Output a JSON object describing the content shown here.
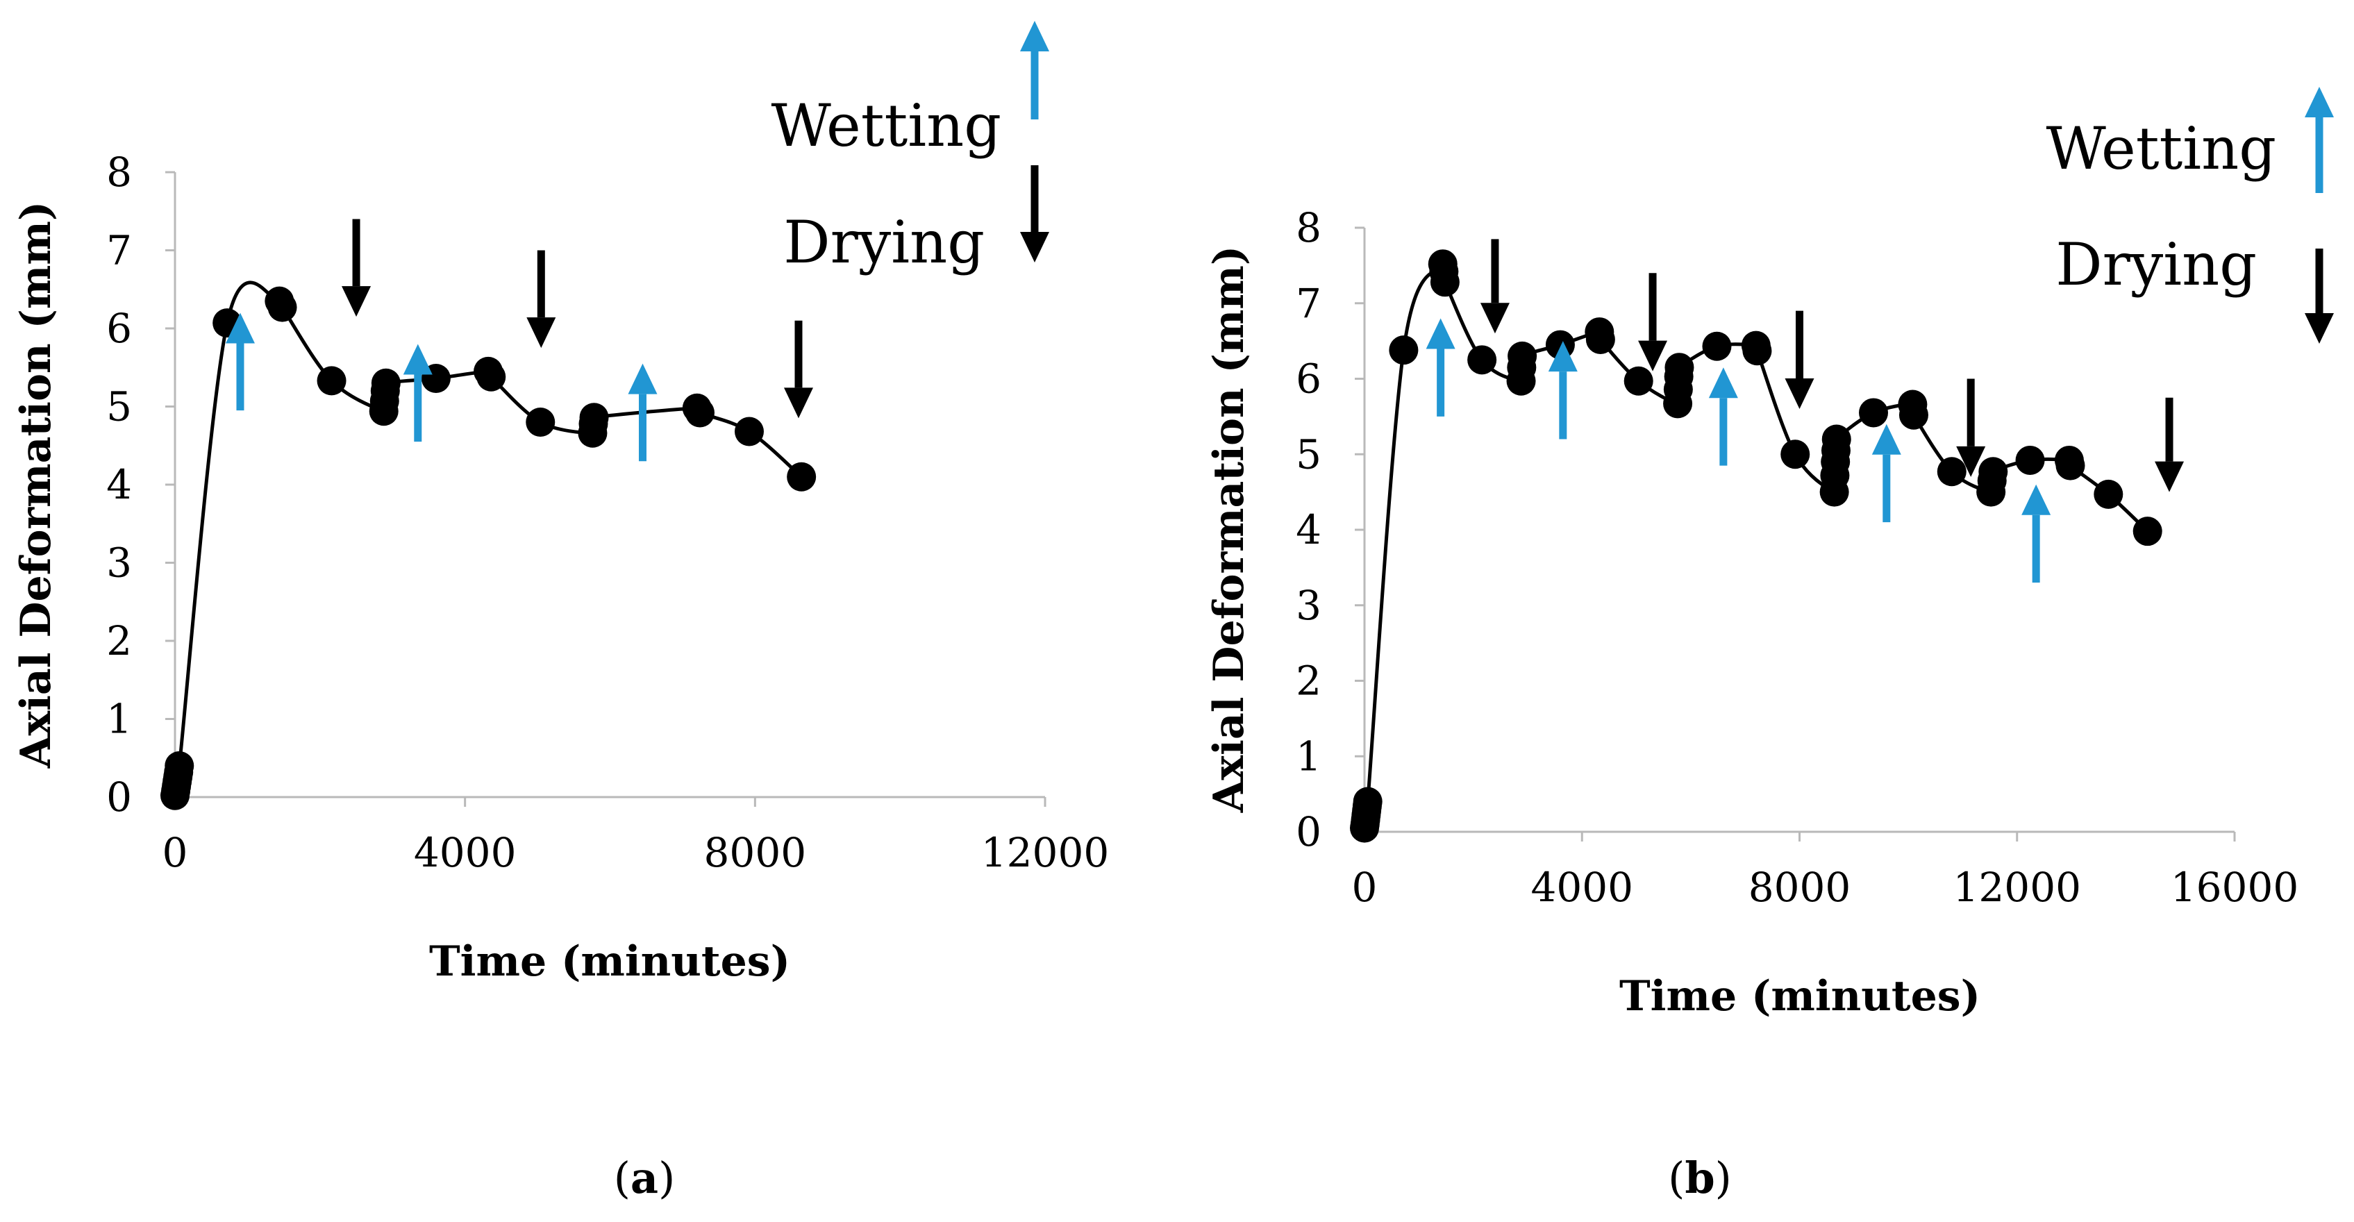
{
  "chart_data": [
    {
      "type": "line",
      "panel": "a",
      "caption_open": "(",
      "caption_label": "a",
      "caption_close": ")",
      "xlabel": "Time (minutes)",
      "ylabel": "Axial Deformation (mm)",
      "xlim": [
        0,
        12000
      ],
      "ylim": [
        0,
        8
      ],
      "x_ticks": [
        0,
        4000,
        8000,
        12000
      ],
      "y_ticks": [
        0,
        1,
        2,
        3,
        4,
        5,
        6,
        7,
        8
      ],
      "grid": false,
      "colors": {
        "series": "#000000",
        "wetting": "#2196d3",
        "drying": "#000000"
      },
      "legend": {
        "wetting": "Wetting",
        "drying": "Drying",
        "placement": "top-right"
      },
      "series": [
        {
          "name": "Axial deformation",
          "x": [
            0,
            10,
            20,
            30,
            40,
            50,
            60,
            720,
            1440,
            1480,
            2160,
            2880,
            2890,
            2900,
            2910,
            3600,
            4320,
            4360,
            5040,
            5760,
            5770,
            5780,
            7200,
            7240,
            7920,
            8640
          ],
          "y": [
            0.02,
            0.08,
            0.14,
            0.2,
            0.26,
            0.32,
            0.4,
            6.07,
            6.35,
            6.27,
            5.33,
            4.94,
            5.07,
            5.2,
            5.3,
            5.36,
            5.45,
            5.38,
            4.8,
            4.66,
            4.78,
            4.86,
            4.98,
            4.92,
            4.68,
            4.1
          ]
        }
      ],
      "wetting_arrows": [
        {
          "x": 900,
          "y_tail": 4.95,
          "y_head": 6.2
        },
        {
          "x": 3350,
          "y_tail": 4.55,
          "y_head": 5.8
        },
        {
          "x": 6450,
          "y_tail": 4.3,
          "y_head": 5.55
        }
      ],
      "drying_arrows": [
        {
          "x": 2500,
          "y_tail": 7.4,
          "y_head": 6.15
        },
        {
          "x": 5050,
          "y_tail": 7.0,
          "y_head": 5.75
        },
        {
          "x": 8600,
          "y_tail": 6.1,
          "y_head": 4.85
        }
      ]
    },
    {
      "type": "line",
      "panel": "b",
      "caption_open": "(",
      "caption_label": "b",
      "caption_close": ")",
      "xlabel": "Time (minutes)",
      "ylabel": "Axial Deformation (mm)",
      "xlim": [
        0,
        16000
      ],
      "ylim": [
        0,
        8
      ],
      "x_ticks": [
        0,
        4000,
        8000,
        12000,
        16000
      ],
      "y_ticks": [
        0,
        1,
        2,
        3,
        4,
        5,
        6,
        7,
        8
      ],
      "grid": false,
      "colors": {
        "series": "#000000",
        "wetting": "#2196d3",
        "drying": "#000000"
      },
      "legend": {
        "wetting": "Wetting",
        "drying": "Drying",
        "placement": "top-right"
      },
      "series": [
        {
          "name": "Axial deformation",
          "x": [
            0,
            10,
            20,
            30,
            40,
            50,
            60,
            720,
            1440,
            1460,
            1480,
            2160,
            2880,
            2890,
            2900,
            3600,
            4320,
            4340,
            5040,
            5760,
            5770,
            5780,
            5790,
            6480,
            7200,
            7220,
            7920,
            8640,
            8650,
            8660,
            8670,
            8680,
            9360,
            10080,
            10100,
            10800,
            11520,
            11540,
            11560,
            12240,
            12960,
            12980,
            13680,
            14400
          ],
          "y": [
            0.05,
            0.1,
            0.16,
            0.22,
            0.28,
            0.34,
            0.4,
            6.38,
            7.52,
            7.42,
            7.28,
            6.25,
            5.97,
            6.15,
            6.3,
            6.45,
            6.62,
            6.52,
            5.97,
            5.67,
            5.86,
            6.03,
            6.15,
            6.43,
            6.44,
            6.37,
            5.0,
            4.5,
            4.72,
            4.9,
            5.05,
            5.2,
            5.55,
            5.66,
            5.52,
            4.77,
            4.5,
            4.65,
            4.77,
            4.92,
            4.92,
            4.85,
            4.47,
            3.98
          ]
        }
      ],
      "wetting_arrows": [
        {
          "x": 1400,
          "y_tail": 5.5,
          "y_head": 6.8
        },
        {
          "x": 3650,
          "y_tail": 5.2,
          "y_head": 6.5
        },
        {
          "x": 6600,
          "y_tail": 4.85,
          "y_head": 6.15
        },
        {
          "x": 9600,
          "y_tail": 4.1,
          "y_head": 5.4
        },
        {
          "x": 12350,
          "y_tail": 3.3,
          "y_head": 4.6
        }
      ],
      "drying_arrows": [
        {
          "x": 2400,
          "y_tail": 7.85,
          "y_head": 6.6
        },
        {
          "x": 5300,
          "y_tail": 7.4,
          "y_head": 6.1
        },
        {
          "x": 8000,
          "y_tail": 6.9,
          "y_head": 5.6
        },
        {
          "x": 11150,
          "y_tail": 6.0,
          "y_head": 4.7
        },
        {
          "x": 14800,
          "y_tail": 5.75,
          "y_head": 4.5
        }
      ]
    }
  ]
}
